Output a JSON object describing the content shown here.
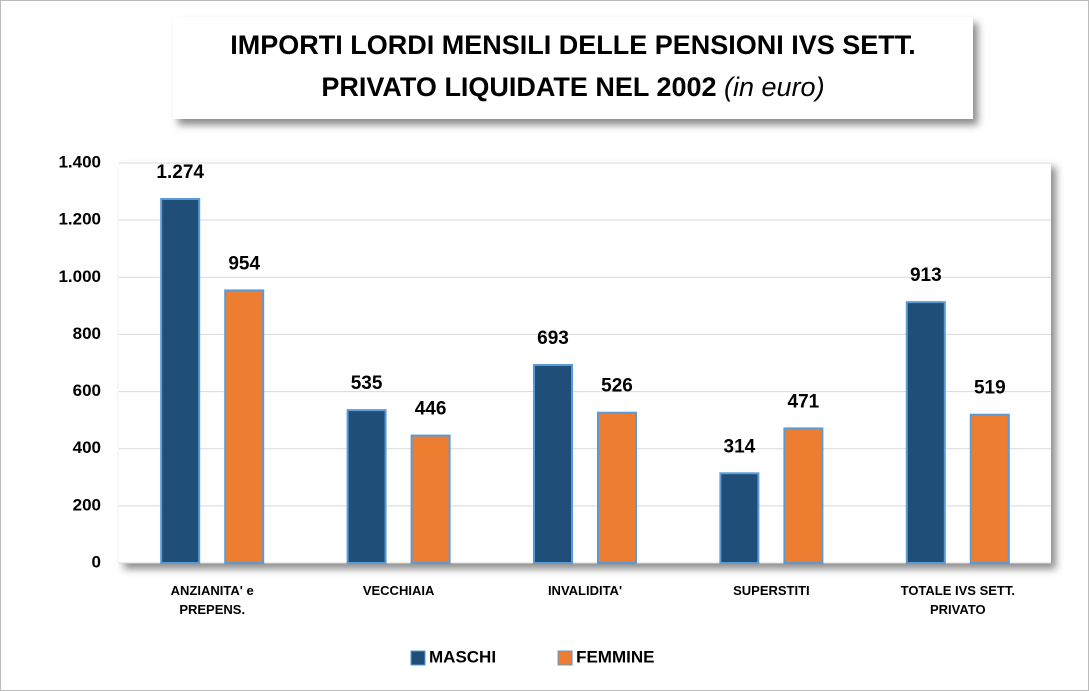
{
  "chart_data": {
    "type": "bar",
    "title": [
      "IMPORTI LORDI MENSILI DELLE PENSIONI IVS SETT.",
      "PRIVATO LIQUIDATE NEL 2002"
    ],
    "title_note": "(in euro)",
    "categories": [
      "ANZIANITA' e PREPENS.",
      "VECCHIAIA",
      "INVALIDITA'",
      "SUPERSTITI",
      "TOTALE IVS SETT. PRIVATO"
    ],
    "series": [
      {
        "name": "MASCHI",
        "color": "#1f4e79",
        "values": [
          1274,
          535,
          693,
          314,
          913
        ],
        "value_labels": [
          "1.274",
          "535",
          "693",
          "314",
          "913"
        ]
      },
      {
        "name": "FEMMINE",
        "color": "#ed7d31",
        "values": [
          954,
          446,
          526,
          471,
          519
        ]
      }
    ],
    "ylim": [
      0,
      1400
    ],
    "yticks": [
      0,
      200,
      400,
      600,
      800,
      {
        "value": 1000,
        "label": "1.000"
      },
      {
        "value": 1200,
        "label": "1.200"
      },
      {
        "value": 1400,
        "label": "1.400"
      }
    ],
    "grid": true,
    "legend": "bottom"
  }
}
